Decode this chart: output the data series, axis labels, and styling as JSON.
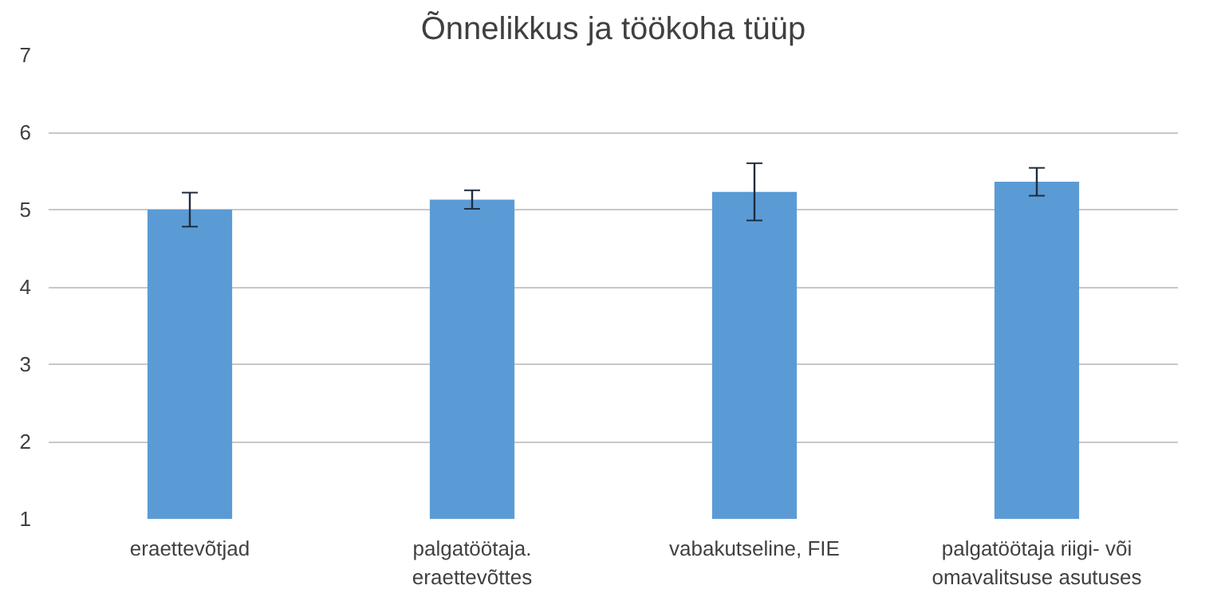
{
  "chart_data": {
    "type": "bar",
    "title": "Õnnelikkus ja töökoha tüüp",
    "categories": [
      "eraettevõtjad",
      "palgatöötaja.\neraettevõttes",
      "vabakutseline, FIE",
      "palgatöötaja riigi- või\nomavalitsuse asutuses"
    ],
    "values": [
      5.0,
      5.13,
      5.23,
      5.36
    ],
    "errors": [
      0.22,
      0.12,
      0.37,
      0.18
    ],
    "color": "#5b9bd5",
    "ylim": [
      1,
      7
    ],
    "yticks": [
      1,
      2,
      3,
      4,
      5,
      6,
      7
    ],
    "grid": "y"
  }
}
